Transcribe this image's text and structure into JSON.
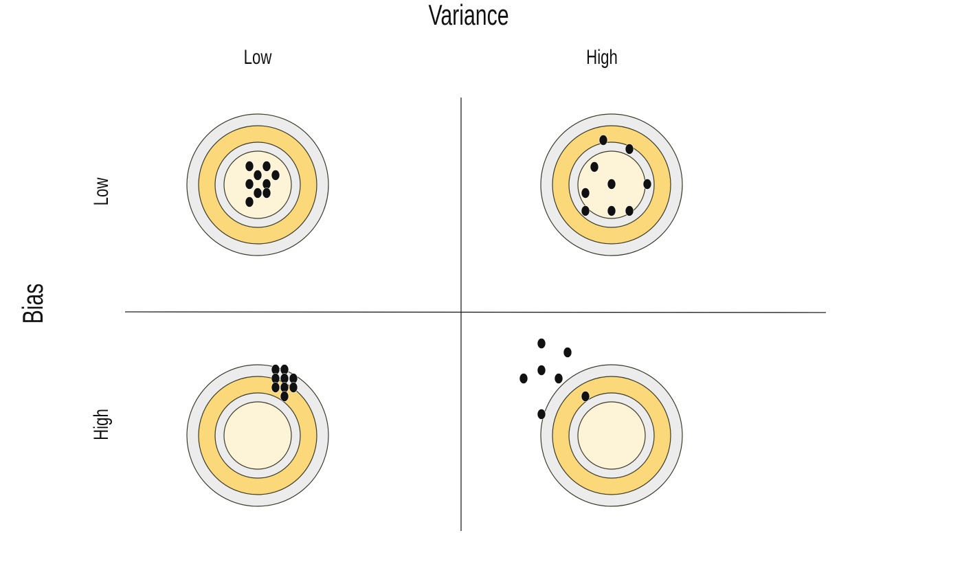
{
  "title": "Variance",
  "row_axis_title": "Bias",
  "columns": [
    {
      "label": "Low"
    },
    {
      "label": "High"
    }
  ],
  "rows": [
    {
      "label": "Low"
    },
    {
      "label": "High"
    }
  ],
  "colors": {
    "outer_ring": "#ececec",
    "yellow_ring": "#fbd97a",
    "inner_ring": "#ececec",
    "bullseye": "#fdf3d6",
    "stroke": "#3a3a2a",
    "dot": "#111111",
    "divider": "#222222"
  }
}
